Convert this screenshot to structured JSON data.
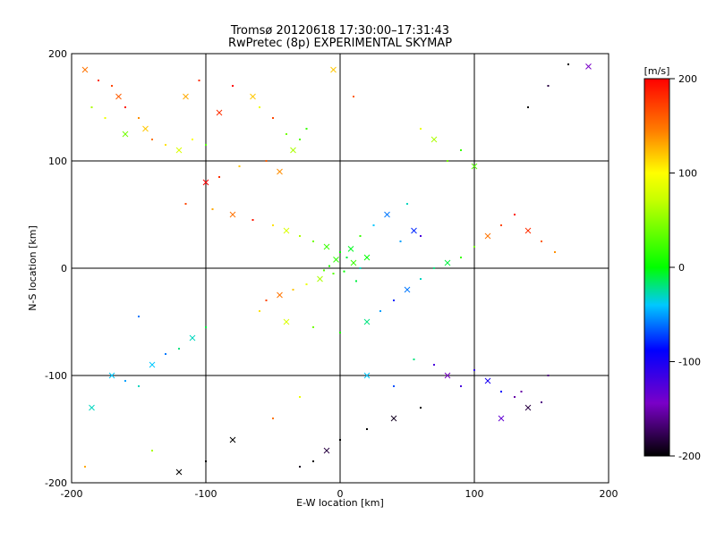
{
  "chart_data": {
    "type": "scatter",
    "title": "Tromsø 20120618 17:30:00–17:31:43",
    "subtitle": "RwPretec (8p) EXPERIMENTAL SKYMAP",
    "xlabel": "E-W location [km]",
    "ylabel": "N-S location [km]",
    "xlim": [
      -200,
      200
    ],
    "ylim": [
      -200,
      200
    ],
    "xticks": [
      -200,
      -100,
      0,
      100,
      200
    ],
    "yticks": [
      -200,
      -100,
      0,
      100,
      200
    ],
    "grid": true,
    "colorbar": {
      "label": "[m/s]",
      "range": [
        -200,
        200
      ],
      "ticks": [
        200,
        100,
        0,
        -100,
        -200
      ],
      "colors": [
        "#000000",
        "#7a00c8",
        "#0000ff",
        "#00c8ff",
        "#00ff00",
        "#ffff00",
        "#ff8000",
        "#ff0000"
      ]
    },
    "markers": [
      "x",
      "dot"
    ],
    "points": [
      [
        -190,
        185,
        150
      ],
      [
        -180,
        175,
        180
      ],
      [
        -170,
        170,
        170
      ],
      [
        -165,
        160,
        160
      ],
      [
        -160,
        150,
        190
      ],
      [
        -150,
        140,
        140
      ],
      [
        -145,
        130,
        120
      ],
      [
        -185,
        150,
        60
      ],
      [
        -175,
        140,
        90
      ],
      [
        -160,
        125,
        40
      ],
      [
        -140,
        120,
        150
      ],
      [
        -130,
        115,
        110
      ],
      [
        -120,
        110,
        80
      ],
      [
        -110,
        120,
        100
      ],
      [
        -100,
        115,
        30
      ],
      [
        -115,
        160,
        130
      ],
      [
        -105,
        175,
        180
      ],
      [
        -80,
        170,
        200
      ],
      [
        -65,
        160,
        120
      ],
      [
        -60,
        150,
        90
      ],
      [
        -50,
        140,
        170
      ],
      [
        -90,
        145,
        180
      ],
      [
        -40,
        125,
        40
      ],
      [
        -30,
        120,
        30
      ],
      [
        -35,
        110,
        60
      ],
      [
        -25,
        130,
        20
      ],
      [
        -55,
        100,
        160
      ],
      [
        -45,
        90,
        140
      ],
      [
        -75,
        95,
        120
      ],
      [
        -90,
        85,
        180
      ],
      [
        -100,
        80,
        200
      ],
      [
        -115,
        60,
        170
      ],
      [
        -95,
        55,
        130
      ],
      [
        -80,
        50,
        150
      ],
      [
        -65,
        45,
        190
      ],
      [
        -50,
        40,
        110
      ],
      [
        -40,
        35,
        80
      ],
      [
        -30,
        30,
        60
      ],
      [
        -20,
        25,
        40
      ],
      [
        -10,
        20,
        20
      ],
      [
        0,
        15,
        0
      ],
      [
        5,
        10,
        -10
      ],
      [
        10,
        5,
        20
      ],
      [
        15,
        0,
        -30
      ],
      [
        -5,
        -5,
        30
      ],
      [
        -15,
        -10,
        60
      ],
      [
        -25,
        -15,
        90
      ],
      [
        -35,
        -20,
        120
      ],
      [
        -45,
        -25,
        150
      ],
      [
        -55,
        -30,
        170
      ],
      [
        -60,
        -40,
        110
      ],
      [
        -40,
        -50,
        80
      ],
      [
        -20,
        -55,
        40
      ],
      [
        0,
        -60,
        10
      ],
      [
        20,
        -50,
        -20
      ],
      [
        30,
        -40,
        -50
      ],
      [
        40,
        -30,
        -80
      ],
      [
        50,
        -20,
        -60
      ],
      [
        60,
        -10,
        -30
      ],
      [
        70,
        0,
        -20
      ],
      [
        80,
        5,
        -10
      ],
      [
        90,
        10,
        20
      ],
      [
        100,
        20,
        40
      ],
      [
        110,
        30,
        150
      ],
      [
        120,
        40,
        170
      ],
      [
        130,
        50,
        190
      ],
      [
        140,
        35,
        180
      ],
      [
        150,
        25,
        160
      ],
      [
        160,
        15,
        140
      ],
      [
        -170,
        -100,
        -40
      ],
      [
        -160,
        -105,
        -50
      ],
      [
        -150,
        -110,
        -30
      ],
      [
        -140,
        -90,
        -40
      ],
      [
        -130,
        -80,
        -60
      ],
      [
        -120,
        -75,
        -20
      ],
      [
        -110,
        -65,
        -30
      ],
      [
        -100,
        -55,
        -10
      ],
      [
        70,
        -90,
        -120
      ],
      [
        80,
        -100,
        -140
      ],
      [
        90,
        -110,
        -120
      ],
      [
        100,
        -95,
        -110
      ],
      [
        110,
        -105,
        -100
      ],
      [
        120,
        -115,
        -90
      ],
      [
        130,
        -120,
        -150
      ],
      [
        140,
        -130,
        -180
      ],
      [
        150,
        -125,
        -160
      ],
      [
        60,
        -130,
        -200
      ],
      [
        40,
        -140,
        -190
      ],
      [
        20,
        -150,
        -200
      ],
      [
        0,
        -160,
        -200
      ],
      [
        -10,
        -170,
        -180
      ],
      [
        -20,
        -180,
        -200
      ],
      [
        -30,
        -185,
        -190
      ],
      [
        -120,
        -190,
        -200
      ],
      [
        -190,
        -185,
        130
      ],
      [
        170,
        190,
        -200
      ],
      [
        185,
        188,
        -140
      ],
      [
        140,
        150,
        -200
      ],
      [
        155,
        170,
        -180
      ],
      [
        120,
        -140,
        -130
      ],
      [
        135,
        -115,
        -150
      ],
      [
        155,
        -100,
        -160
      ],
      [
        -5,
        185,
        120
      ],
      [
        10,
        160,
        160
      ],
      [
        60,
        130,
        90
      ],
      [
        70,
        120,
        60
      ],
      [
        80,
        100,
        40
      ],
      [
        90,
        110,
        20
      ],
      [
        100,
        95,
        30
      ],
      [
        -30,
        -120,
        90
      ],
      [
        -50,
        -140,
        150
      ],
      [
        -80,
        -160,
        -200
      ],
      [
        -100,
        -180,
        -200
      ],
      [
        40,
        -110,
        -70
      ],
      [
        20,
        -100,
        -40
      ],
      [
        55,
        -85,
        -20
      ],
      [
        -150,
        -45,
        -60
      ],
      [
        -185,
        -130,
        -30
      ],
      [
        -140,
        -170,
        60
      ],
      [
        25,
        40,
        -40
      ],
      [
        35,
        50,
        -60
      ],
      [
        45,
        25,
        -50
      ],
      [
        50,
        60,
        -30
      ],
      [
        55,
        35,
        -80
      ],
      [
        60,
        30,
        -120
      ],
      [
        15,
        30,
        20
      ],
      [
        20,
        10,
        0
      ],
      [
        -8,
        2,
        10
      ],
      [
        3,
        -3,
        0
      ],
      [
        -3,
        8,
        15
      ],
      [
        12,
        -12,
        -10
      ],
      [
        -12,
        -2,
        30
      ],
      [
        8,
        18,
        -5
      ]
    ]
  }
}
